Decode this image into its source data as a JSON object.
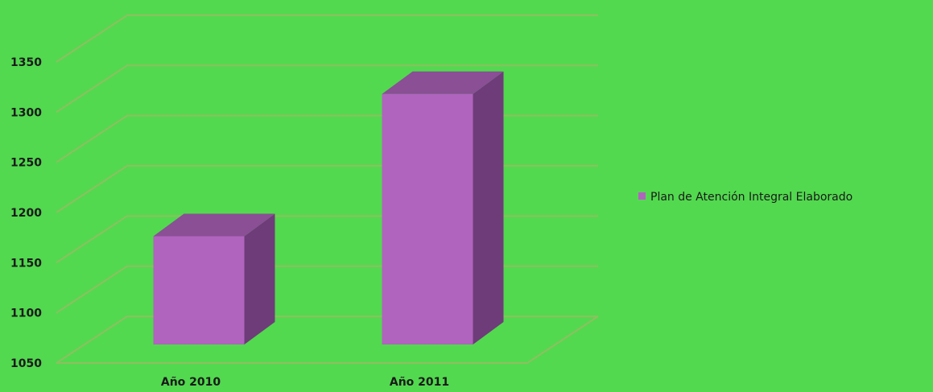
{
  "chart_data": {
    "type": "bar",
    "categories": [
      "Año 2010",
      "Año 2011"
    ],
    "series": [
      {
        "name": "Plan de Atención Integral Elaborado",
        "values": [
          1165,
          1316
        ]
      }
    ],
    "ylim": [
      1050,
      1350
    ],
    "yticks": [
      1050,
      1100,
      1150,
      1200,
      1250,
      1300,
      1350
    ],
    "grid": true,
    "legend_position": "right",
    "three_d": true,
    "colors": {
      "background": "#52d94f",
      "bar_front": "#b064be",
      "bar_top": "#8a4f95",
      "bar_side": "#6e3c79",
      "grid": "#8fbf60"
    }
  }
}
